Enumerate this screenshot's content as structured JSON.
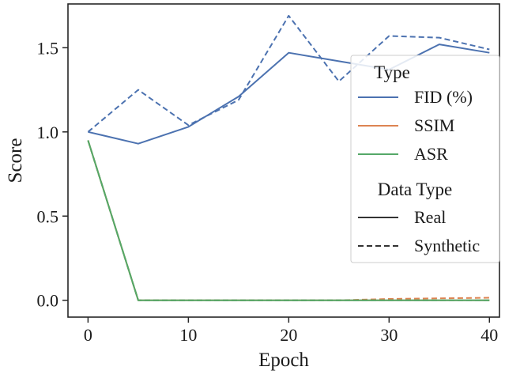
{
  "chart_data": {
    "type": "line",
    "title": "",
    "xlabel": "Epoch",
    "ylabel": "Score",
    "xlim": [
      -2,
      41
    ],
    "ylim": [
      -0.1,
      1.76
    ],
    "x_ticks": [
      0,
      10,
      20,
      30,
      40
    ],
    "y_ticks": [
      0.0,
      0.5,
      1.0,
      1.5
    ],
    "x_tick_labels": [
      "0",
      "10",
      "20",
      "30",
      "40"
    ],
    "y_tick_labels": [
      "0.0",
      "0.5",
      "1.0",
      "1.5"
    ],
    "x": [
      0,
      5,
      10,
      15,
      20,
      25,
      30,
      35,
      40
    ],
    "grid": false,
    "legend_position": "right",
    "legend": {
      "metric_title": "Type",
      "style_title": "Data Type",
      "metrics": [
        "FID (%)",
        "SSIM",
        "ASR"
      ],
      "styles": [
        "Real",
        "Synthetic"
      ]
    },
    "colors": {
      "FID (%)": "#4c72b0",
      "SSIM": "#dd8452",
      "ASR": "#55a868"
    },
    "series": [
      {
        "metric": "FID (%)",
        "data_type": "Real",
        "dashed": false,
        "values": [
          1.0,
          0.93,
          1.03,
          1.21,
          1.47,
          1.42,
          1.37,
          1.52,
          1.47
        ]
      },
      {
        "metric": "FID (%)",
        "data_type": "Synthetic",
        "dashed": true,
        "values": [
          1.0,
          1.25,
          1.04,
          1.19,
          1.69,
          1.3,
          1.57,
          1.56,
          1.49
        ]
      },
      {
        "metric": "SSIM",
        "data_type": "Real",
        "dashed": false,
        "values": [
          0.95,
          0.0,
          0.0,
          0.0,
          0.0,
          0.0,
          0.0,
          0.0,
          0.0
        ]
      },
      {
        "metric": "SSIM",
        "data_type": "Synthetic",
        "dashed": true,
        "values": [
          0.95,
          0.0,
          0.0,
          0.0,
          0.0,
          0.0,
          0.008,
          0.012,
          0.015
        ]
      },
      {
        "metric": "ASR",
        "data_type": "Real",
        "dashed": false,
        "values": [
          0.95,
          0.0,
          0.0,
          0.0,
          0.0,
          0.0,
          0.0,
          0.0,
          0.0
        ]
      },
      {
        "metric": "ASR",
        "data_type": "Synthetic",
        "dashed": true,
        "values": [
          0.95,
          0.0,
          0.0,
          0.0,
          0.0,
          0.0,
          0.0,
          0.0,
          0.0
        ]
      }
    ]
  }
}
